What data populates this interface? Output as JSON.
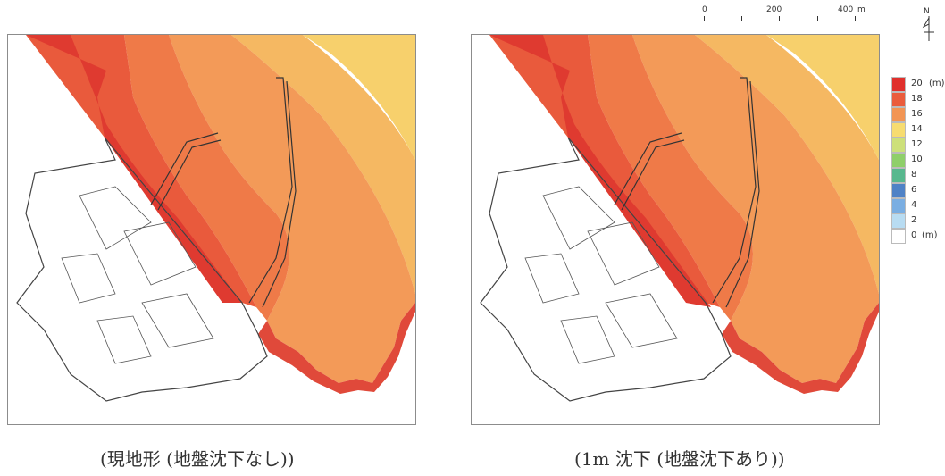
{
  "captions": {
    "left": "(現地形 (地盤沈下なし))",
    "right": "(1m 沈下 (地盤沈下あり))"
  },
  "scale_bar": {
    "ticks": [
      "0",
      "200",
      "400"
    ],
    "unit": "m"
  },
  "north_arrow": {
    "letter": "N"
  },
  "legend": {
    "unit_top": "(m)",
    "unit_bottom": "(m)",
    "items": [
      {
        "label": "20",
        "color": "#e0302c"
      },
      {
        "label": "18",
        "color": "#ea5c3c"
      },
      {
        "label": "16",
        "color": "#f29554"
      },
      {
        "label": "14",
        "color": "#f7dc70"
      },
      {
        "label": "12",
        "color": "#cde07a"
      },
      {
        "label": "10",
        "color": "#8fcf6a"
      },
      {
        "label": "8",
        "color": "#58b88e"
      },
      {
        "label": "6",
        "color": "#4f82c6"
      },
      {
        "label": "4",
        "color": "#7aaee2"
      },
      {
        "label": "2",
        "color": "#b8dcf2"
      },
      {
        "label": "0",
        "color": "#ffffff"
      }
    ]
  },
  "colors": {
    "depth_20": "#df3a30",
    "depth_18": "#e95a3c",
    "depth_17": "#ef7a48",
    "depth_16": "#f39a58",
    "depth_15": "#f5b862",
    "depth_14": "#f7d06c",
    "land_outline": "#444444"
  }
}
